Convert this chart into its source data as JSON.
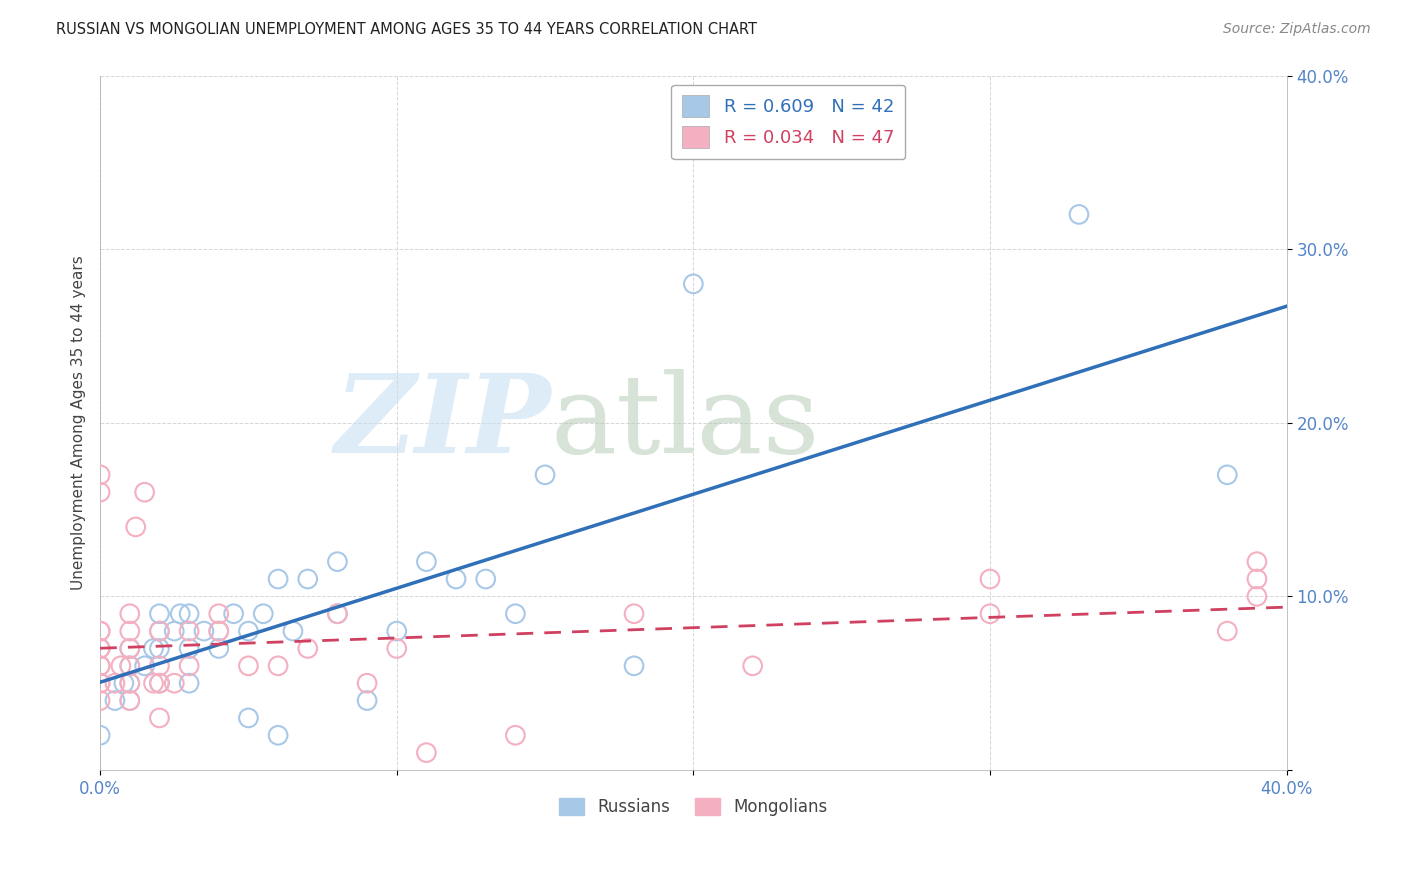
{
  "title": "RUSSIAN VS MONGOLIAN UNEMPLOYMENT AMONG AGES 35 TO 44 YEARS CORRELATION CHART",
  "source": "Source: ZipAtlas.com",
  "ylabel": "Unemployment Among Ages 35 to 44 years",
  "xlim": [
    0.0,
    0.4
  ],
  "ylim": [
    0.0,
    0.4
  ],
  "xticks": [
    0.0,
    0.1,
    0.2,
    0.3,
    0.4
  ],
  "yticks": [
    0.0,
    0.1,
    0.2,
    0.3,
    0.4
  ],
  "xticklabels": [
    "0.0%",
    "",
    "",
    "",
    "40.0%"
  ],
  "yticklabels": [
    "",
    "10.0%",
    "20.0%",
    "30.0%",
    "40.0%"
  ],
  "russian_R": 0.609,
  "russian_N": 42,
  "mongolian_R": 0.034,
  "mongolian_N": 47,
  "russian_color": "#a8c8e8",
  "mongolian_color": "#f4afc0",
  "russian_line_color": "#3070b8",
  "mongolian_line_color": "#d04060",
  "background_color": "#ffffff",
  "tick_color": "#5585c8",
  "russians_x": [
    0.0,
    0.005,
    0.008,
    0.01,
    0.01,
    0.01,
    0.01,
    0.015,
    0.018,
    0.02,
    0.02,
    0.02,
    0.02,
    0.025,
    0.027,
    0.03,
    0.03,
    0.03,
    0.035,
    0.04,
    0.04,
    0.045,
    0.05,
    0.05,
    0.055,
    0.06,
    0.06,
    0.065,
    0.07,
    0.08,
    0.08,
    0.09,
    0.1,
    0.11,
    0.12,
    0.13,
    0.14,
    0.15,
    0.18,
    0.2,
    0.33,
    0.38
  ],
  "russians_y": [
    0.02,
    0.04,
    0.05,
    0.04,
    0.05,
    0.06,
    0.07,
    0.06,
    0.07,
    0.05,
    0.07,
    0.08,
    0.09,
    0.08,
    0.09,
    0.05,
    0.07,
    0.09,
    0.08,
    0.07,
    0.08,
    0.09,
    0.03,
    0.08,
    0.09,
    0.02,
    0.11,
    0.08,
    0.11,
    0.09,
    0.12,
    0.04,
    0.08,
    0.12,
    0.11,
    0.11,
    0.09,
    0.17,
    0.06,
    0.28,
    0.32,
    0.17
  ],
  "mongolians_x": [
    0.0,
    0.0,
    0.0,
    0.0,
    0.0,
    0.0,
    0.0,
    0.0,
    0.0,
    0.0,
    0.0,
    0.005,
    0.007,
    0.01,
    0.01,
    0.01,
    0.01,
    0.01,
    0.01,
    0.012,
    0.015,
    0.018,
    0.02,
    0.02,
    0.02,
    0.02,
    0.025,
    0.03,
    0.03,
    0.04,
    0.04,
    0.05,
    0.06,
    0.07,
    0.08,
    0.09,
    0.1,
    0.11,
    0.14,
    0.18,
    0.22,
    0.3,
    0.3,
    0.38,
    0.39,
    0.39,
    0.39
  ],
  "mongolians_y": [
    0.04,
    0.05,
    0.05,
    0.06,
    0.06,
    0.07,
    0.07,
    0.08,
    0.08,
    0.16,
    0.17,
    0.05,
    0.06,
    0.04,
    0.05,
    0.06,
    0.07,
    0.08,
    0.09,
    0.14,
    0.16,
    0.05,
    0.03,
    0.05,
    0.06,
    0.08,
    0.05,
    0.06,
    0.08,
    0.08,
    0.09,
    0.06,
    0.06,
    0.07,
    0.09,
    0.05,
    0.07,
    0.01,
    0.02,
    0.09,
    0.06,
    0.09,
    0.11,
    0.08,
    0.1,
    0.11,
    0.12
  ]
}
